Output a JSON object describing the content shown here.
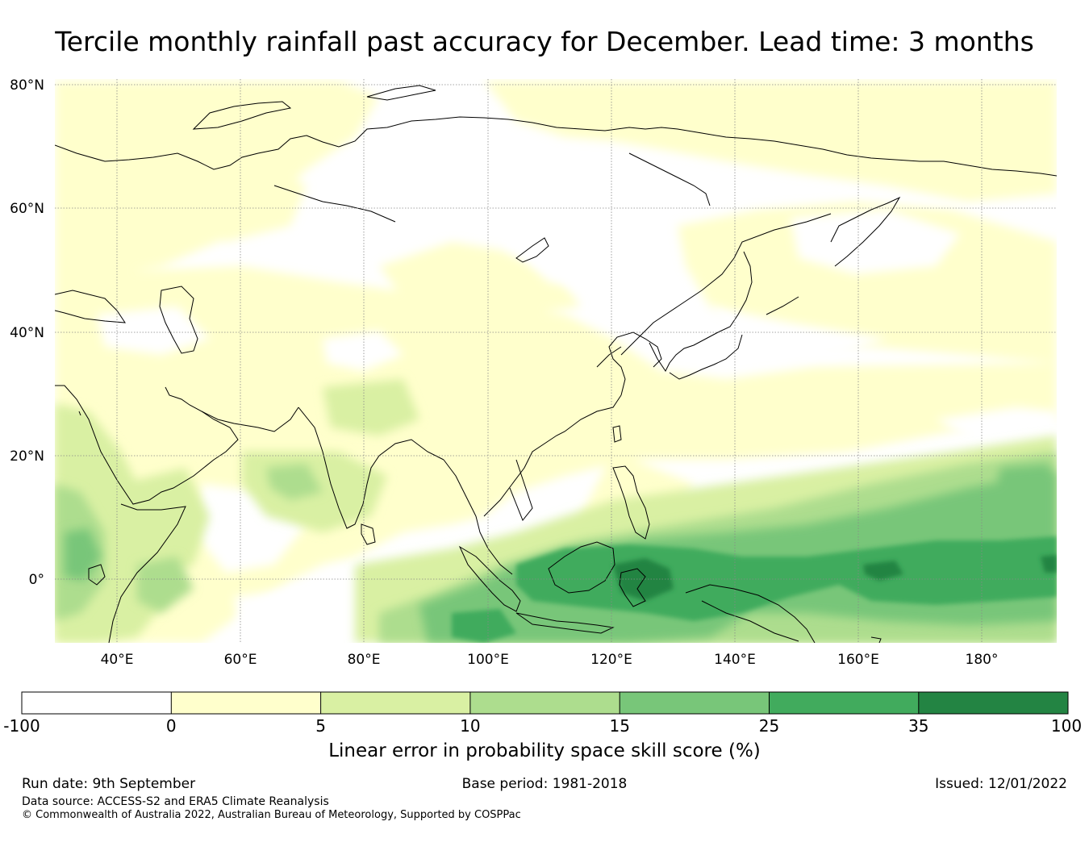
{
  "title": "Tercile monthly rainfall past accuracy for December. Lead time: 3 months",
  "map": {
    "lon_range": [
      30,
      192
    ],
    "lat_range": [
      -10,
      80
    ],
    "lat_ticks": [
      {
        "value": 80,
        "label": "80°N"
      },
      {
        "value": 60,
        "label": "60°N"
      },
      {
        "value": 40,
        "label": "40°N"
      },
      {
        "value": 20,
        "label": "20°N"
      },
      {
        "value": 0,
        "label": "0°"
      }
    ],
    "lon_ticks": [
      {
        "value": 40,
        "label": "40°E"
      },
      {
        "value": 60,
        "label": "60°E"
      },
      {
        "value": 80,
        "label": "80°E"
      },
      {
        "value": 100,
        "label": "100°E"
      },
      {
        "value": 120,
        "label": "120°E"
      },
      {
        "value": 140,
        "label": "140°E"
      },
      {
        "value": 160,
        "label": "160°E"
      },
      {
        "value": 180,
        "label": "180°"
      }
    ],
    "gridlines": true,
    "coastline_color": "#000000"
  },
  "colorbar": {
    "boundaries": [
      "-100",
      "0",
      "5",
      "10",
      "15",
      "25",
      "35",
      "100"
    ],
    "colors": [
      "#ffffff",
      "#ffffcc",
      "#d9f0a3",
      "#addd8e",
      "#78c679",
      "#41ab5d",
      "#238443"
    ],
    "label": "Linear error in probability space skill score (%)"
  },
  "footer": {
    "run_date": "Run date: 9th September",
    "base_period": "Base period: 1981-2018",
    "issued": "Issued: 12/01/2022",
    "data_source": "Data source: ACCESS-S2 and ERA5 Climate Reanalysis",
    "copyright": "© Commonwealth of Australia 2022, Australian Bureau of Meteorology, Supported by COSPPac"
  }
}
